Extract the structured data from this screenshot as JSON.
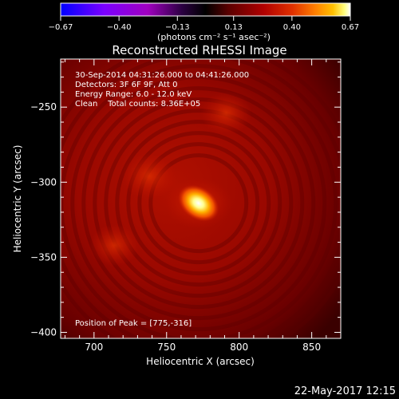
{
  "chart_data": {
    "type": "heatmap",
    "title": "Reconstructed RHESSI Image",
    "xlabel": "Heliocentric X (arcsec)",
    "ylabel": "Heliocentric Y (arcsec)",
    "xlim": [
      677,
      870
    ],
    "ylim": [
      -404,
      -218
    ],
    "x_ticks": [
      700,
      750,
      800,
      850
    ],
    "y_ticks": [
      -250,
      -300,
      -350,
      -400
    ],
    "colorbar": {
      "unit_label": "(photons cm⁻² s⁻¹ asec⁻²)",
      "range": [
        -0.67,
        0.67
      ],
      "tick_labels": [
        "-0.67",
        "-0.40",
        "-0.13",
        "0.13",
        "0.40",
        "0.67"
      ],
      "colormap": [
        "#0000ff",
        "#7a00ff",
        "#a000c0",
        "#2a0040",
        "#000000",
        "#5a0000",
        "#b00000",
        "#e03000",
        "#ff8000",
        "#ffc000",
        "#ffff80",
        "#ffffff"
      ]
    },
    "annotations": [
      "30-Sep-2014 04:31:26.000 to 04:41:26.000",
      "Detectors: 3F 6F 9F, Att 0",
      "Energy Range: 6.0 - 12.0 keV",
      "Clean    Total counts: 8.36E+05"
    ],
    "peak_label": "Position of Peak = [775,-316]",
    "sources": [
      {
        "x": 772,
        "y": -314,
        "peak": 0.67
      },
      {
        "x": 738,
        "y": -296,
        "peak": 0.25
      },
      {
        "x": 791,
        "y": -254,
        "peak": 0.2
      },
      {
        "x": 714,
        "y": -342,
        "peak": 0.18
      }
    ]
  },
  "footer": {
    "timestamp": "22-May-2017 12:15"
  }
}
